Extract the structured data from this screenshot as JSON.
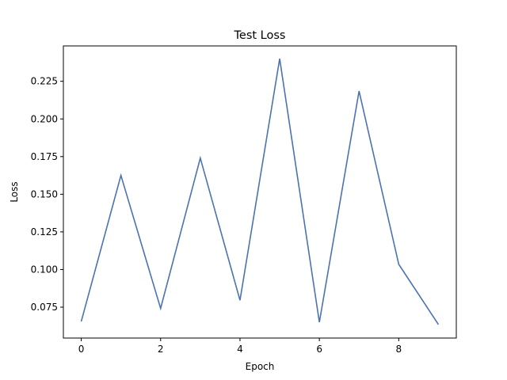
{
  "chart_data": {
    "type": "line",
    "title": "Test Loss",
    "xlabel": "Epoch",
    "ylabel": "Loss",
    "xlim": [
      -0.45,
      9.45
    ],
    "ylim": [
      0.0545,
      0.2485
    ],
    "xticks": [
      0,
      2,
      4,
      6,
      8
    ],
    "yticks": [
      0.075,
      0.1,
      0.125,
      0.15,
      0.175,
      0.2,
      0.225
    ],
    "ytick_labels": [
      "0.075",
      "0.100",
      "0.125",
      "0.150",
      "0.175",
      "0.200",
      "0.225"
    ],
    "grid": false,
    "series": [
      {
        "color": "#4c72b0",
        "x": [
          0,
          1,
          2,
          3,
          4,
          5,
          6,
          7,
          8,
          9
        ],
        "values": [
          0.0655,
          0.1625,
          0.0742,
          0.174,
          0.0796,
          0.24,
          0.065,
          0.2185,
          0.1035,
          0.0635
        ]
      }
    ]
  }
}
